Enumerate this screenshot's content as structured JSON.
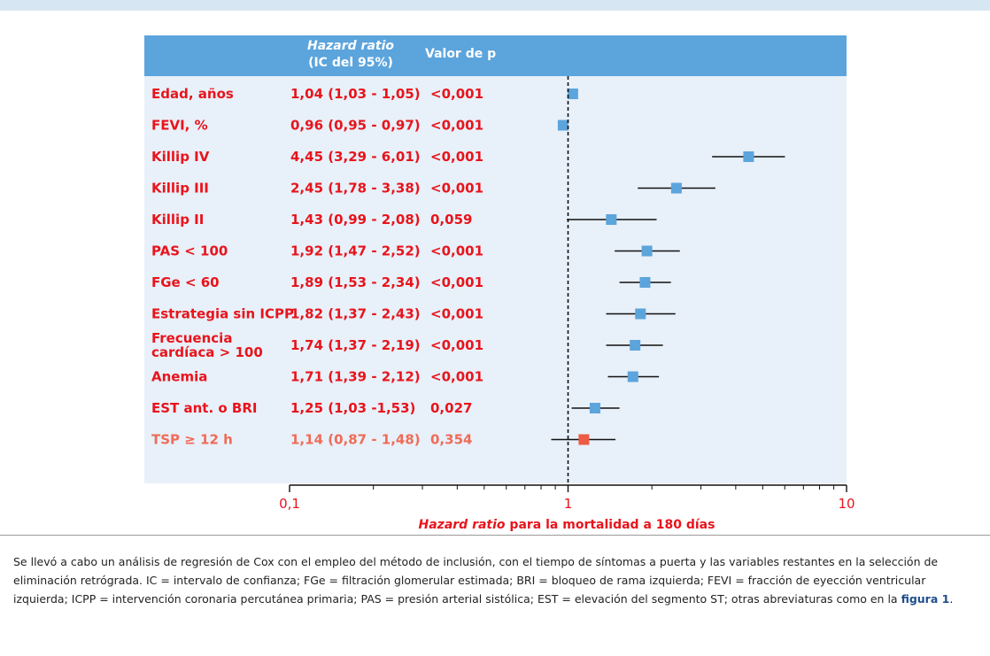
{
  "colors": {
    "header_bg": "#5ca4dc",
    "panel_bg": "#e8f0f9",
    "label_red": "#e8141c",
    "label_salmon": "#ef6b57",
    "marker_blue": "#5ca4dc",
    "marker_red": "#ec5b44"
  },
  "table": {
    "header_hr_line1": "Hazard ratio",
    "header_hr_line2": "(IC del 95%)",
    "header_p": "Valor de p"
  },
  "chart_data": {
    "type": "forest",
    "x_scale": "log",
    "xlim": [
      0.1,
      10
    ],
    "reference_line": 1,
    "x_ticks": [
      {
        "value": 0.1,
        "label": "0,1"
      },
      {
        "value": 1,
        "label": "1"
      },
      {
        "value": 10,
        "label": "10"
      }
    ],
    "xlabel_italic": "Hazard ratio",
    "xlabel_rest": " para la mortalidad a 180 días",
    "rows": [
      {
        "label": [
          "Edad, años"
        ],
        "hr": 1.04,
        "lo": 1.03,
        "hi": 1.05,
        "hr_text": "1,04 (1,03 - 1,05)",
        "p_text": "<0,001",
        "color": "blue"
      },
      {
        "label": [
          "FEVI, %"
        ],
        "hr": 0.96,
        "lo": 0.95,
        "hi": 0.97,
        "hr_text": "0,96 (0,95 - 0,97)",
        "p_text": "<0,001",
        "color": "blue"
      },
      {
        "label": [
          "Killip IV"
        ],
        "hr": 4.45,
        "lo": 3.29,
        "hi": 6.01,
        "hr_text": "4,45 (3,29 - 6,01)",
        "p_text": "<0,001",
        "color": "blue"
      },
      {
        "label": [
          "Killip III"
        ],
        "hr": 2.45,
        "lo": 1.78,
        "hi": 3.38,
        "hr_text": "2,45 (1,78 - 3,38)",
        "p_text": "<0,001",
        "color": "blue"
      },
      {
        "label": [
          "Killip II"
        ],
        "hr": 1.43,
        "lo": 0.99,
        "hi": 2.08,
        "hr_text": "1,43 (0,99 - 2,08)",
        "p_text": "0,059",
        "color": "blue"
      },
      {
        "label": [
          "PAS < 100"
        ],
        "hr": 1.92,
        "lo": 1.47,
        "hi": 2.52,
        "hr_text": "1,92 (1,47 - 2,52)",
        "p_text": "<0,001",
        "color": "blue"
      },
      {
        "label": [
          "FGe < 60"
        ],
        "hr": 1.89,
        "lo": 1.53,
        "hi": 2.34,
        "hr_text": "1,89 (1,53 - 2,34)",
        "p_text": "<0,001",
        "color": "blue"
      },
      {
        "label": [
          "Estrategia sin ICPP"
        ],
        "hr": 1.82,
        "lo": 1.37,
        "hi": 2.43,
        "hr_text": "1,82 (1,37 - 2,43)",
        "p_text": "<0,001",
        "color": "blue"
      },
      {
        "label": [
          "Frecuencia",
          "cardíaca > 100"
        ],
        "hr": 1.74,
        "lo": 1.37,
        "hi": 2.19,
        "hr_text": "1,74 (1,37 - 2,19)",
        "p_text": "<0,001",
        "color": "blue"
      },
      {
        "label": [
          "Anemia"
        ],
        "hr": 1.71,
        "lo": 1.39,
        "hi": 2.12,
        "hr_text": "1,71 (1,39 - 2,12)",
        "p_text": "<0,001",
        "color": "blue"
      },
      {
        "label": [
          "EST ant. o BRI"
        ],
        "hr": 1.25,
        "lo": 1.03,
        "hi": 1.53,
        "hr_text": "1,25 (1,03 -1,53)",
        "p_text": "0,027",
        "color": "blue"
      },
      {
        "label": [
          "TSP ≥ 12 h"
        ],
        "hr": 1.14,
        "lo": 0.87,
        "hi": 1.48,
        "hr_text": "1,14 (0,87 - 1,48)",
        "p_text": "0,354",
        "color": "red"
      }
    ]
  },
  "caption": {
    "text": "Se llevó a cabo un análisis de regresión de Cox con el empleo del método de inclusión, con el tiempo de síntomas a puerta y las variables restantes en la selección de eliminación retrógrada. IC = intervalo de confianza; FGe = filtración glomerular estimada; BRI = bloqueo de rama izquierda; FEVI = fracción de eyección ventricular izquierda; ICPP = intervención coronaria percutánea primaria; PAS = presión arterial sistólica; EST = elevación del segmento ST; otras abreviaturas como en la ",
    "link_text": "figura 1",
    "end": "."
  }
}
